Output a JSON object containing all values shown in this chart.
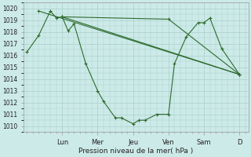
{
  "background_color": "#cceae8",
  "grid_color": "#aad0cc",
  "line_color": "#2d6b2d",
  "ylabel": "Pression niveau de la mer( hPa )",
  "ylim": [
    1009.5,
    1020.5
  ],
  "yticks": [
    1010,
    1011,
    1012,
    1013,
    1014,
    1015,
    1016,
    1017,
    1018,
    1019,
    1020
  ],
  "day_labels": [
    "Lun",
    "Mer",
    "Jeu",
    "Ven",
    "Sam",
    "D"
  ],
  "day_positions": [
    24,
    48,
    72,
    96,
    120,
    144
  ],
  "xlim": [
    -2,
    150
  ],
  "series1_x": [
    0,
    8,
    16,
    20,
    24,
    28,
    32,
    40,
    48,
    52,
    60,
    64,
    72,
    76,
    80,
    88,
    96,
    100,
    108,
    116,
    120,
    124,
    132,
    144
  ],
  "series1_y": [
    1016.3,
    1017.7,
    1019.8,
    1019.2,
    1019.3,
    1018.1,
    1018.7,
    1015.3,
    1013.0,
    1012.1,
    1010.7,
    1010.7,
    1010.2,
    1010.5,
    1010.5,
    1011.0,
    1011.0,
    1015.3,
    1017.6,
    1018.8,
    1018.8,
    1019.2,
    1016.6,
    1014.4
  ],
  "series2_x": [
    8,
    144
  ],
  "series2_y": [
    1019.8,
    1014.4
  ],
  "series3_x": [
    24,
    96,
    144
  ],
  "series3_y": [
    1019.3,
    1019.1,
    1014.4
  ],
  "series4_x": [
    24,
    144
  ],
  "series4_y": [
    1019.3,
    1014.4
  ],
  "figsize": [
    3.2,
    2.0
  ],
  "dpi": 100
}
